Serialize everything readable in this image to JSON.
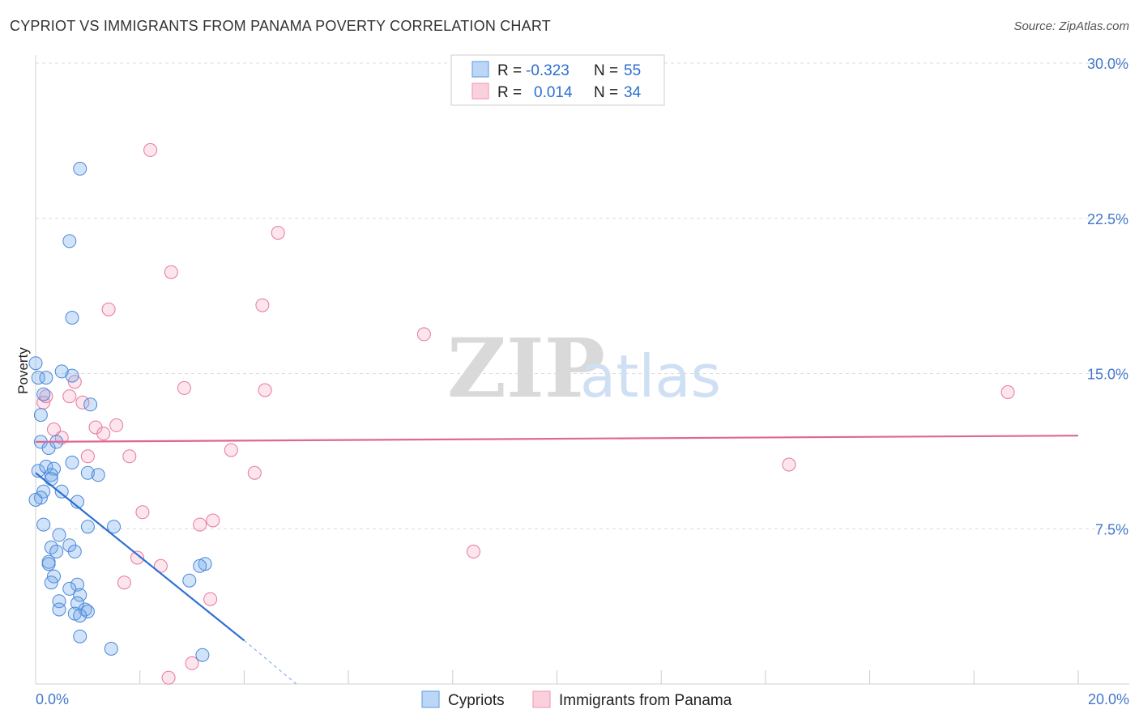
{
  "header": {
    "title": "CYPRIOT VS IMMIGRANTS FROM PANAMA POVERTY CORRELATION CHART",
    "source": "Source: ZipAtlas.com"
  },
  "watermark": {
    "zip": "ZIP",
    "atlas": "atlas"
  },
  "legend": {
    "rows": [
      {
        "r_label": "R =",
        "r_value": "-0.323",
        "n_label": "N =",
        "n_value": "55",
        "color": "#6fa8ea"
      },
      {
        "r_label": "R =",
        "r_value": "0.014",
        "n_label": "N =",
        "n_value": "34",
        "color": "#f4a0bb"
      }
    ]
  },
  "chart_data": {
    "type": "scatter",
    "title": "CYPRIOT VS IMMIGRANTS FROM PANAMA POVERTY CORRELATION CHART",
    "xlabel": "",
    "ylabel": "Poverty",
    "xlim": [
      0,
      20
    ],
    "ylim": [
      0,
      30
    ],
    "x_tick_labels": [
      "0.0%",
      "20.0%"
    ],
    "y_ticks": [
      7.5,
      15.0,
      22.5,
      30.0
    ],
    "y_tick_labels": [
      "7.5%",
      "15.0%",
      "22.5%",
      "30.0%"
    ],
    "grid": true,
    "series": [
      {
        "name": "Cypriots",
        "color": "#6fa8ea",
        "stroke": "#4a87d8",
        "points": [
          [
            0.0,
            15.5
          ],
          [
            0.05,
            14.8
          ],
          [
            0.2,
            14.8
          ],
          [
            0.5,
            15.1
          ],
          [
            0.7,
            14.9
          ],
          [
            0.1,
            13.0
          ],
          [
            0.15,
            14.0
          ],
          [
            1.05,
            13.5
          ],
          [
            0.1,
            11.7
          ],
          [
            0.25,
            11.4
          ],
          [
            0.4,
            11.7
          ],
          [
            0.7,
            10.7
          ],
          [
            0.05,
            10.3
          ],
          [
            0.2,
            10.5
          ],
          [
            0.35,
            10.4
          ],
          [
            0.3,
            10.1
          ],
          [
            0.3,
            9.9
          ],
          [
            1.0,
            10.2
          ],
          [
            1.2,
            10.1
          ],
          [
            0.5,
            9.3
          ],
          [
            0.15,
            9.3
          ],
          [
            0.1,
            9.0
          ],
          [
            0.0,
            8.9
          ],
          [
            0.8,
            8.8
          ],
          [
            0.15,
            7.7
          ],
          [
            1.0,
            7.6
          ],
          [
            1.5,
            7.6
          ],
          [
            0.45,
            7.2
          ],
          [
            0.65,
            6.7
          ],
          [
            0.3,
            6.6
          ],
          [
            0.75,
            6.4
          ],
          [
            0.4,
            6.4
          ],
          [
            0.25,
            5.9
          ],
          [
            0.25,
            5.8
          ],
          [
            3.25,
            5.8
          ],
          [
            3.15,
            5.7
          ],
          [
            0.35,
            5.2
          ],
          [
            0.3,
            4.9
          ],
          [
            0.8,
            4.8
          ],
          [
            2.95,
            5.0
          ],
          [
            0.65,
            4.6
          ],
          [
            0.85,
            4.3
          ],
          [
            0.45,
            4.0
          ],
          [
            0.8,
            3.9
          ],
          [
            0.45,
            3.6
          ],
          [
            0.95,
            3.6
          ],
          [
            1.0,
            3.5
          ],
          [
            0.75,
            3.4
          ],
          [
            0.85,
            3.3
          ],
          [
            0.85,
            2.3
          ],
          [
            1.45,
            1.7
          ],
          [
            3.2,
            1.4
          ],
          [
            0.7,
            17.7
          ],
          [
            0.65,
            21.4
          ],
          [
            0.85,
            24.9
          ]
        ]
      },
      {
        "name": "Immigrants from Panama",
        "color": "#f4a0bb",
        "stroke": "#e6789c",
        "points": [
          [
            2.2,
            25.8
          ],
          [
            4.65,
            21.8
          ],
          [
            2.6,
            19.9
          ],
          [
            1.4,
            18.1
          ],
          [
            4.35,
            18.3
          ],
          [
            7.45,
            16.9
          ],
          [
            0.15,
            13.6
          ],
          [
            0.2,
            13.9
          ],
          [
            0.75,
            14.6
          ],
          [
            2.85,
            14.3
          ],
          [
            4.4,
            14.2
          ],
          [
            0.65,
            13.9
          ],
          [
            0.9,
            13.6
          ],
          [
            0.35,
            12.3
          ],
          [
            1.15,
            12.4
          ],
          [
            1.55,
            12.5
          ],
          [
            1.3,
            12.1
          ],
          [
            0.5,
            11.9
          ],
          [
            3.75,
            11.3
          ],
          [
            1.0,
            11.0
          ],
          [
            1.8,
            11.0
          ],
          [
            4.2,
            10.2
          ],
          [
            2.05,
            8.3
          ],
          [
            3.15,
            7.7
          ],
          [
            3.4,
            7.9
          ],
          [
            1.95,
            6.1
          ],
          [
            2.4,
            5.7
          ],
          [
            1.7,
            4.9
          ],
          [
            3.35,
            4.1
          ],
          [
            8.4,
            6.4
          ],
          [
            14.45,
            10.6
          ],
          [
            18.65,
            14.1
          ],
          [
            3.0,
            1.0
          ],
          [
            2.55,
            0.3
          ]
        ]
      }
    ],
    "trend_lines": [
      {
        "series": "Cypriots",
        "x": [
          0.0,
          4.0
        ],
        "y": [
          10.2,
          2.1
        ],
        "dashed_extension": {
          "x": [
            4.0,
            5.0
          ],
          "y": [
            2.1,
            0.0
          ]
        }
      },
      {
        "series": "Immigrants from Panama",
        "x": [
          0.0,
          20.0
        ],
        "y": [
          11.7,
          12.0
        ]
      }
    ]
  },
  "bottom_legend": [
    {
      "label": "Cypriots",
      "color": "#6fa8ea"
    },
    {
      "label": "Immigrants from Panama",
      "color": "#f4a0bb"
    }
  ]
}
